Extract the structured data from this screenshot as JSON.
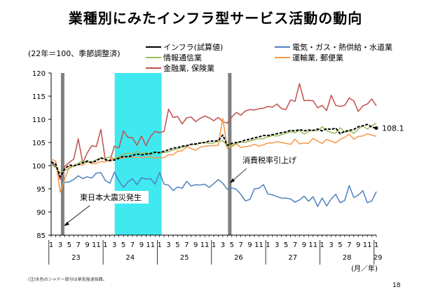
{
  "slide": {
    "title": "業種別にみたインフラ型サービス活動の動向",
    "subtitle": "(22年＝100、季節調整済)",
    "footnote": "(注)水色のシャドー部分は景気後退局面。",
    "page_number": "18"
  },
  "chart_data": {
    "type": "line",
    "title": "",
    "ylim": [
      85,
      120
    ],
    "yticks": [
      85,
      90,
      95,
      100,
      105,
      110,
      115,
      120
    ],
    "x_unit_label": "(月／年)",
    "month_tick_labels": [
      "1",
      "3",
      "5",
      "7",
      "9",
      "11"
    ],
    "years": [
      "23",
      "24",
      "25",
      "26",
      "27",
      "28",
      "29"
    ],
    "x_start": "2011-01",
    "x_end": "2017-01",
    "n_points": 73,
    "shade_periods": [
      {
        "kind": "recession",
        "color": "#40E8F0",
        "start_index": 14,
        "end_index": 24
      },
      {
        "kind": "event",
        "color": "#808080",
        "start_index": 2,
        "end_index": 2
      },
      {
        "kind": "event",
        "color": "#808080",
        "start_index": 39,
        "end_index": 39
      }
    ],
    "annotations": [
      {
        "text": "東日本大震災発生",
        "target_index": 2,
        "target_value": 88
      },
      {
        "text": "消費税率引上げ",
        "target_index": 39,
        "target_value": 96
      },
      {
        "text": "108.1",
        "target_index": 72,
        "target_value": 108.1
      }
    ],
    "series": [
      {
        "name": "インフラ(試算値)",
        "color": "#000000",
        "dashed": true,
        "values": [
          100.8,
          100.4,
          97.6,
          99.3,
          100.1,
          100.0,
          100.2,
          100.6,
          101.0,
          100.7,
          101.0,
          101.7,
          101.3,
          101.1,
          101.2,
          101.6,
          102.0,
          101.9,
          102.2,
          102.5,
          102.3,
          102.5,
          102.6,
          102.9,
          102.8,
          103.1,
          103.4,
          103.8,
          103.9,
          104.2,
          104.3,
          104.6,
          104.7,
          104.9,
          105.0,
          105.3,
          105.3,
          105.4,
          106.6,
          104.4,
          104.8,
          105.0,
          105.2,
          105.5,
          105.7,
          106.0,
          106.2,
          106.5,
          106.5,
          106.7,
          106.9,
          107.1,
          107.3,
          107.6,
          107.5,
          107.8,
          107.5,
          107.7,
          107.6,
          107.9,
          107.5,
          108.0,
          107.8,
          108.1,
          106.9,
          107.4,
          107.6,
          107.8,
          108.4,
          108.6,
          108.9,
          108.3,
          108.1
        ]
      },
      {
        "name": "電気・ガス・熱供給・水道業",
        "color": "#4F81BD",
        "dashed": false,
        "values": [
          100.6,
          99.8,
          97.3,
          96.4,
          96.5,
          97.0,
          97.8,
          97.2,
          97.6,
          97.3,
          98.4,
          98.5,
          96.8,
          96.2,
          98.6,
          96.7,
          95.3,
          96.5,
          97.2,
          95.9,
          97.4,
          97.1,
          97.2,
          96.0,
          98.5,
          96.0,
          95.8,
          94.6,
          95.4,
          95.1,
          96.6,
          95.6,
          95.9,
          95.8,
          96.0,
          95.3,
          96.1,
          97.0,
          96.2,
          94.9,
          95.2,
          94.9,
          93.8,
          92.4,
          92.7,
          95.0,
          95.1,
          95.9,
          93.9,
          93.7,
          93.3,
          93.0,
          93.0,
          92.8,
          92.1,
          92.6,
          93.4,
          92.3,
          93.3,
          91.2,
          93.0,
          91.3,
          92.8,
          93.8,
          92.0,
          92.5,
          95.7,
          93.1,
          93.6,
          94.6,
          92.0,
          92.4,
          94.4
        ]
      },
      {
        "name": "情報通信業",
        "color": "#9BBB59",
        "dashed": false,
        "values": [
          100.2,
          99.6,
          98.4,
          99.0,
          99.4,
          99.9,
          100.5,
          101.1,
          100.7,
          100.8,
          101.3,
          101.5,
          101.6,
          101.9,
          101.5,
          102.0,
          102.4,
          102.7,
          102.5,
          103.1,
          102.6,
          102.9,
          102.4,
          102.9,
          102.7,
          102.8,
          103.0,
          103.4,
          103.6,
          103.9,
          104.3,
          104.6,
          104.5,
          104.9,
          105.0,
          104.8,
          104.9,
          105.3,
          105.4,
          104.2,
          104.4,
          104.8,
          105.1,
          105.0,
          105.3,
          105.6,
          105.8,
          105.8,
          106.2,
          106.5,
          106.4,
          106.7,
          107.0,
          107.3,
          107.1,
          107.6,
          106.8,
          107.4,
          107.6,
          107.5,
          108.4,
          107.6,
          107.1,
          107.0,
          108.2,
          107.2,
          107.5,
          107.0,
          107.9,
          108.6,
          107.9,
          108.6,
          109.2
        ]
      },
      {
        "name": "運輸業, 郵便業",
        "color": "#F79646",
        "dashed": false,
        "values": [
          101.4,
          101.0,
          94.3,
          97.1,
          99.7,
          99.9,
          100.3,
          100.1,
          100.9,
          100.4,
          100.5,
          100.9,
          100.8,
          101.2,
          101.4,
          101.6,
          101.6,
          102.0,
          101.8,
          101.8,
          101.7,
          101.9,
          101.9,
          101.6,
          101.8,
          101.7,
          102.4,
          102.3,
          103.1,
          103.2,
          104.1,
          103.7,
          103.3,
          104.0,
          104.2,
          104.3,
          104.3,
          104.4,
          110.2,
          103.7,
          104.1,
          104.7,
          103.9,
          104.1,
          104.2,
          104.6,
          104.2,
          104.5,
          104.9,
          104.9,
          105.2,
          105.0,
          104.8,
          104.6,
          105.7,
          104.7,
          104.9,
          104.8,
          105.9,
          105.3,
          104.8,
          105.7,
          105.3,
          104.9,
          105.7,
          106.1,
          106.8,
          105.7,
          106.3,
          106.4,
          106.9,
          106.6,
          106.3
        ]
      },
      {
        "name": "金融業, 保険業",
        "color": "#C0504D",
        "dashed": false,
        "values": [
          100.5,
          100.2,
          97.0,
          99.8,
          100.7,
          101.4,
          105.8,
          100.5,
          102.8,
          104.3,
          104.1,
          107.8,
          101.2,
          101.0,
          104.2,
          103.8,
          107.5,
          106.1,
          106.0,
          104.4,
          106.4,
          104.3,
          106.3,
          107.4,
          107.1,
          107.4,
          112.2,
          110.4,
          110.6,
          109.0,
          110.3,
          110.5,
          109.5,
          110.2,
          110.7,
          110.3,
          109.7,
          110.4,
          109.5,
          109.2,
          110.5,
          111.5,
          110.9,
          111.8,
          112.1,
          112.0,
          112.3,
          112.4,
          112.8,
          112.6,
          113.3,
          112.3,
          112.1,
          114.2,
          113.9,
          117.7,
          114.0,
          114.1,
          114.0,
          112.5,
          113.0,
          111.9,
          115.2,
          113.0,
          112.8,
          113.0,
          114.6,
          114.0,
          111.7,
          112.9,
          113.3,
          114.4,
          112.9
        ]
      }
    ]
  }
}
